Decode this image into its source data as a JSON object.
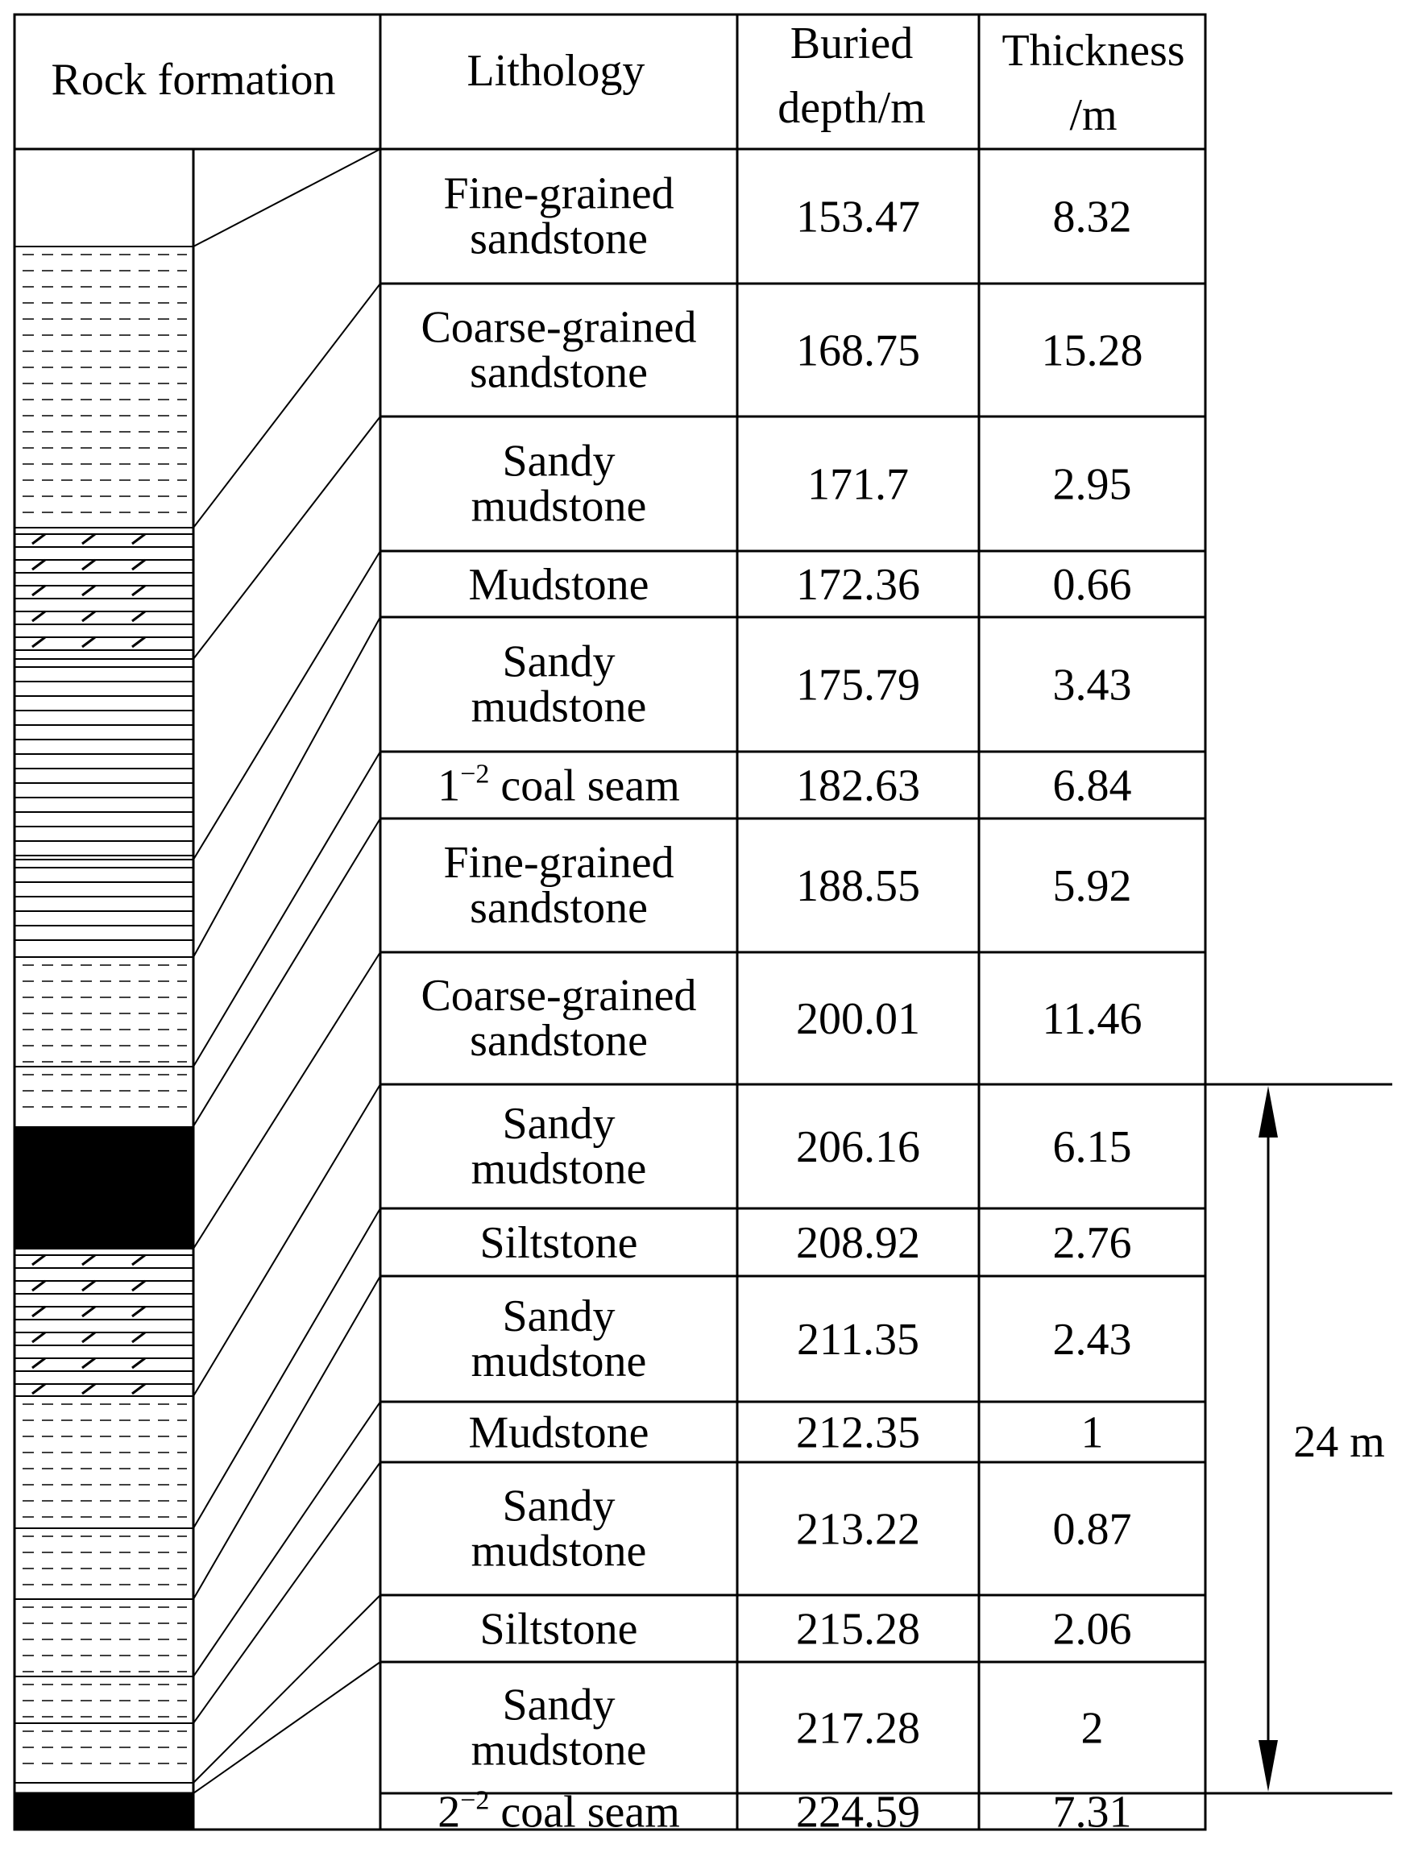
{
  "header": {
    "rock_formation": "Rock formation",
    "lithology": "Lithology",
    "buried_depth_line1": "Buried",
    "buried_depth_line2": "depth/m",
    "thickness_line1": "Thickness",
    "thickness_line2": "/m"
  },
  "layers": [
    {
      "lith": [
        "Fine-grained",
        "sandstone"
      ],
      "depth": "153.47",
      "thickness": "8.32",
      "pattern": "dash"
    },
    {
      "lith": [
        "Coarse-grained",
        "sandstone"
      ],
      "depth": "168.75",
      "thickness": "15.28",
      "pattern": "dash"
    },
    {
      "lith": [
        "Sandy",
        "mudstone"
      ],
      "depth": "171.7",
      "thickness": "2.95",
      "pattern": "sandy"
    },
    {
      "lith": [
        "Mudstone"
      ],
      "depth": "172.36",
      "thickness": "0.66",
      "pattern": "line"
    },
    {
      "lith": [
        "Sandy",
        "mudstone"
      ],
      "depth": "175.79",
      "thickness": "3.43",
      "pattern": "line"
    },
    {
      "lith": [],
      "coal": {
        "base": "1",
        "sup": "−2",
        "rest": " coal seam"
      },
      "depth": "182.63",
      "thickness": "6.84",
      "pattern": "dash"
    },
    {
      "lith": [
        "Fine-grained",
        "sandstone"
      ],
      "depth": "188.55",
      "thickness": "5.92",
      "pattern": "dash"
    },
    {
      "lith": [
        "Coarse-grained",
        "sandstone"
      ],
      "depth": "200.01",
      "thickness": "11.46",
      "pattern": "coal"
    },
    {
      "lith": [
        "Sandy",
        "mudstone"
      ],
      "depth": "206.16",
      "thickness": "6.15",
      "pattern": "sandy"
    },
    {
      "lith": [
        "Siltstone"
      ],
      "depth": "208.92",
      "thickness": "2.76",
      "pattern": "dash"
    },
    {
      "lith": [
        "Sandy",
        "mudstone"
      ],
      "depth": "211.35",
      "thickness": "2.43",
      "pattern": "dash"
    },
    {
      "lith": [
        "Mudstone"
      ],
      "depth": "212.35",
      "thickness": "1",
      "pattern": "dash"
    },
    {
      "lith": [
        "Sandy",
        "mudstone"
      ],
      "depth": "213.22",
      "thickness": "0.87",
      "pattern": "dash"
    },
    {
      "lith": [
        "Siltstone"
      ],
      "depth": "215.28",
      "thickness": "2.06",
      "pattern": "dash"
    },
    {
      "lith": [
        "Sandy",
        "mudstone"
      ],
      "depth": "217.28",
      "thickness": "2",
      "pattern": "dash"
    },
    {
      "lith": [],
      "coal": {
        "base": "2",
        "sup": "−2",
        "rest": " coal seam"
      },
      "depth": "224.59",
      "thickness": "7.31",
      "pattern": "coal"
    }
  ],
  "annotation": {
    "distance_label": "24 m"
  }
}
